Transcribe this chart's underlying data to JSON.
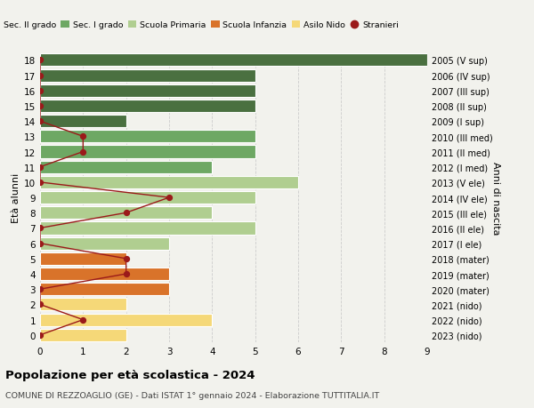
{
  "ages": [
    18,
    17,
    16,
    15,
    14,
    13,
    12,
    11,
    10,
    9,
    8,
    7,
    6,
    5,
    4,
    3,
    2,
    1,
    0
  ],
  "years": [
    "2005 (V sup)",
    "2006 (IV sup)",
    "2007 (III sup)",
    "2008 (II sup)",
    "2009 (I sup)",
    "2010 (III med)",
    "2011 (II med)",
    "2012 (I med)",
    "2013 (V ele)",
    "2014 (IV ele)",
    "2015 (III ele)",
    "2016 (II ele)",
    "2017 (I ele)",
    "2018 (mater)",
    "2019 (mater)",
    "2020 (mater)",
    "2021 (nido)",
    "2022 (nido)",
    "2023 (nido)"
  ],
  "bar_values": [
    9,
    5,
    5,
    5,
    2,
    5,
    5,
    4,
    6,
    5,
    4,
    5,
    3,
    2,
    3,
    3,
    2,
    4,
    2
  ],
  "bar_colors": [
    "#4a7040",
    "#4a7040",
    "#4a7040",
    "#4a7040",
    "#4a7040",
    "#6ea864",
    "#6ea864",
    "#6ea864",
    "#b0ce90",
    "#b0ce90",
    "#b0ce90",
    "#b0ce90",
    "#b0ce90",
    "#d9732a",
    "#d9732a",
    "#d9732a",
    "#f5d878",
    "#f5d878",
    "#f5d878"
  ],
  "stranieri_values": [
    0,
    0,
    0,
    0,
    0,
    1,
    1,
    0,
    0,
    3,
    2,
    0,
    0,
    2,
    2,
    0,
    0,
    1,
    0
  ],
  "stranieri_color": "#9b1a1a",
  "legend_items": [
    {
      "label": "Sec. II grado",
      "color": "#4a7040"
    },
    {
      "label": "Sec. I grado",
      "color": "#6ea864"
    },
    {
      "label": "Scuola Primaria",
      "color": "#b0ce90"
    },
    {
      "label": "Scuola Infanzia",
      "color": "#d9732a"
    },
    {
      "label": "Asilo Nido",
      "color": "#f5d878"
    },
    {
      "label": "Stranieri",
      "color": "#9b1a1a"
    }
  ],
  "xlim": [
    0,
    9
  ],
  "ylabel_left": "Età alunni",
  "ylabel_right": "Anni di nascita",
  "title": "Popolazione per età scolastica - 2024",
  "subtitle": "COMUNE DI REZZOAGLIO (GE) - Dati ISTAT 1° gennaio 2024 - Elaborazione TUTTITALIA.IT",
  "background_color": "#f2f2ed",
  "grid_color": "#cccccc",
  "bar_height": 0.82
}
